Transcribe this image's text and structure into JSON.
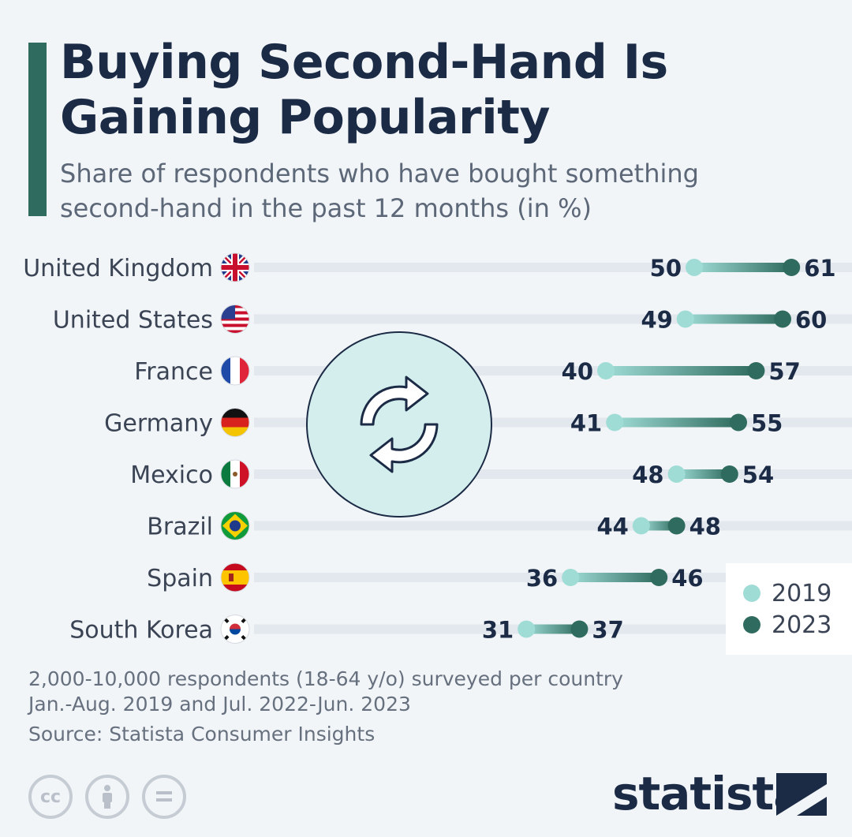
{
  "header": {
    "title": "Buying Second-Hand Is Gaining Popularity",
    "subtitle": "Share of respondents who have bought something second-hand in the past 12 months (in %)"
  },
  "chart_data": {
    "type": "dumbbell",
    "title": "Buying Second-Hand Is Gaining Popularity",
    "subtitle": "Share of respondents who have bought something second-hand in the past 12 months (in %)",
    "categories": [
      "United Kingdom",
      "United States",
      "France",
      "Germany",
      "Mexico",
      "Brazil",
      "Spain",
      "South Korea"
    ],
    "series": [
      {
        "name": "2019",
        "values": [
          50,
          49,
          40,
          41,
          48,
          44,
          36,
          31
        ],
        "color": "#9fdcd6"
      },
      {
        "name": "2023",
        "values": [
          61,
          60,
          57,
          55,
          54,
          48,
          46,
          37
        ],
        "color": "#2f6b5e"
      }
    ],
    "xlim": [
      0,
      80
    ],
    "legend_position": "bottom-right",
    "grid": false
  },
  "flags": {
    "United Kingdom": "flag-uk-icon",
    "United States": "flag-us-icon",
    "France": "flag-fr-icon",
    "Germany": "flag-de-icon",
    "Mexico": "flag-mx-icon",
    "Brazil": "flag-br-icon",
    "Spain": "flag-es-icon",
    "South Korea": "flag-kr-icon"
  },
  "center_icon": "recycle-arrows-icon",
  "colors": {
    "accent": "#2f6b5e",
    "color_2019": "#9fdcd6",
    "color_2023": "#2f6b5e",
    "track": "#e3e8ee",
    "title": "#1b2a45"
  },
  "footer": {
    "note_line1": "2,000-10,000 respondents (18-64 y/o) surveyed per country",
    "note_line2": "Jan.-Aug. 2019 and Jul. 2022-Jun. 2023",
    "source": "Source: Statista Consumer Insights",
    "brand": "statista",
    "cc_icons": [
      "cc",
      "by",
      "nd"
    ]
  },
  "legend": {
    "items": [
      {
        "label": "2019",
        "color": "#9fdcd6"
      },
      {
        "label": "2023",
        "color": "#2f6b5e"
      }
    ]
  }
}
